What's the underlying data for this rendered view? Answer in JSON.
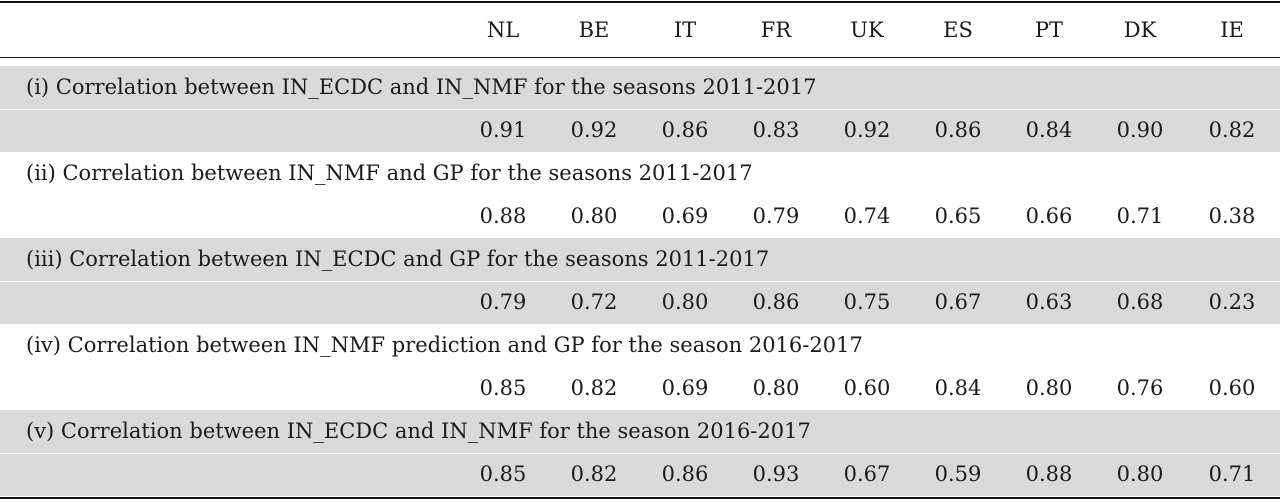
{
  "columns": [
    "NL",
    "BE",
    "IT",
    "FR",
    "UK",
    "ES",
    "PT",
    "DK",
    "IE"
  ],
  "sections": [
    {
      "title": "(i) Correlation between IN_ECDC and IN_NMF for the seasons 2011-2017",
      "values": [
        "0.91",
        "0.92",
        "0.86",
        "0.83",
        "0.92",
        "0.86",
        "0.84",
        "0.90",
        "0.82"
      ]
    },
    {
      "title": "(ii) Correlation between IN_NMF and GP for the seasons 2011-2017",
      "values": [
        "0.88",
        "0.80",
        "0.69",
        "0.79",
        "0.74",
        "0.65",
        "0.66",
        "0.71",
        "0.38"
      ]
    },
    {
      "title": "(iii) Correlation between IN_ECDC and GP for the seasons 2011-2017",
      "values": [
        "0.79",
        "0.72",
        "0.80",
        "0.86",
        "0.75",
        "0.67",
        "0.63",
        "0.68",
        "0.23"
      ]
    },
    {
      "title": "(iv) Correlation between IN_NMF prediction and GP for the season 2016-2017",
      "values": [
        "0.85",
        "0.82",
        "0.69",
        "0.80",
        "0.60",
        "0.84",
        "0.80",
        "0.76",
        "0.60"
      ]
    },
    {
      "title": "(v) Correlation between IN_ECDC and IN_NMF for the season 2016-2017",
      "values": [
        "0.85",
        "0.82",
        "0.86",
        "0.93",
        "0.67",
        "0.59",
        "0.88",
        "0.80",
        "0.71"
      ]
    }
  ]
}
